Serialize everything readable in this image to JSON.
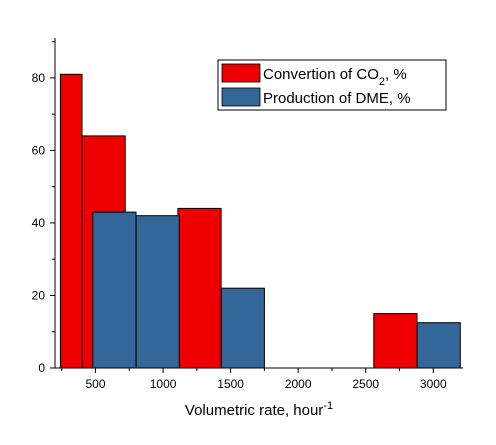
{
  "chart_data": {
    "type": "bar",
    "xlabel": "Volumetric rate, hour",
    "xlabel_superscript": "-1",
    "ylabel": "",
    "xlim": [
      200,
      3220
    ],
    "ylim": [
      0,
      91
    ],
    "x_ticks": [
      500,
      1000,
      1500,
      2000,
      2500,
      3000
    ],
    "y_ticks": [
      0,
      20,
      40,
      60,
      80
    ],
    "grid": false,
    "legend_position": "top-right",
    "legend_boxed": true,
    "series": [
      {
        "name": "Convertion of CO",
        "name_subscript": "2",
        "name_suffix": ", %",
        "color": "#ee0000",
        "bars": [
          {
            "x_start": 240,
            "x_end": 400,
            "value": 81
          },
          {
            "x_start": 400,
            "x_end": 720,
            "value": 64
          },
          {
            "x_start": 1110,
            "x_end": 1430,
            "value": 44
          },
          {
            "x_start": 2560,
            "x_end": 2880,
            "value": 15
          }
        ]
      },
      {
        "name": "Production of DME, %",
        "color": "#336699",
        "bars": [
          {
            "x_start": 480,
            "x_end": 800,
            "value": 43
          },
          {
            "x_start": 800,
            "x_end": 1120,
            "value": 42
          },
          {
            "x_start": 1430,
            "x_end": 1750,
            "value": 22
          },
          {
            "x_start": 2880,
            "x_end": 3200,
            "value": 12.5
          }
        ]
      }
    ]
  }
}
